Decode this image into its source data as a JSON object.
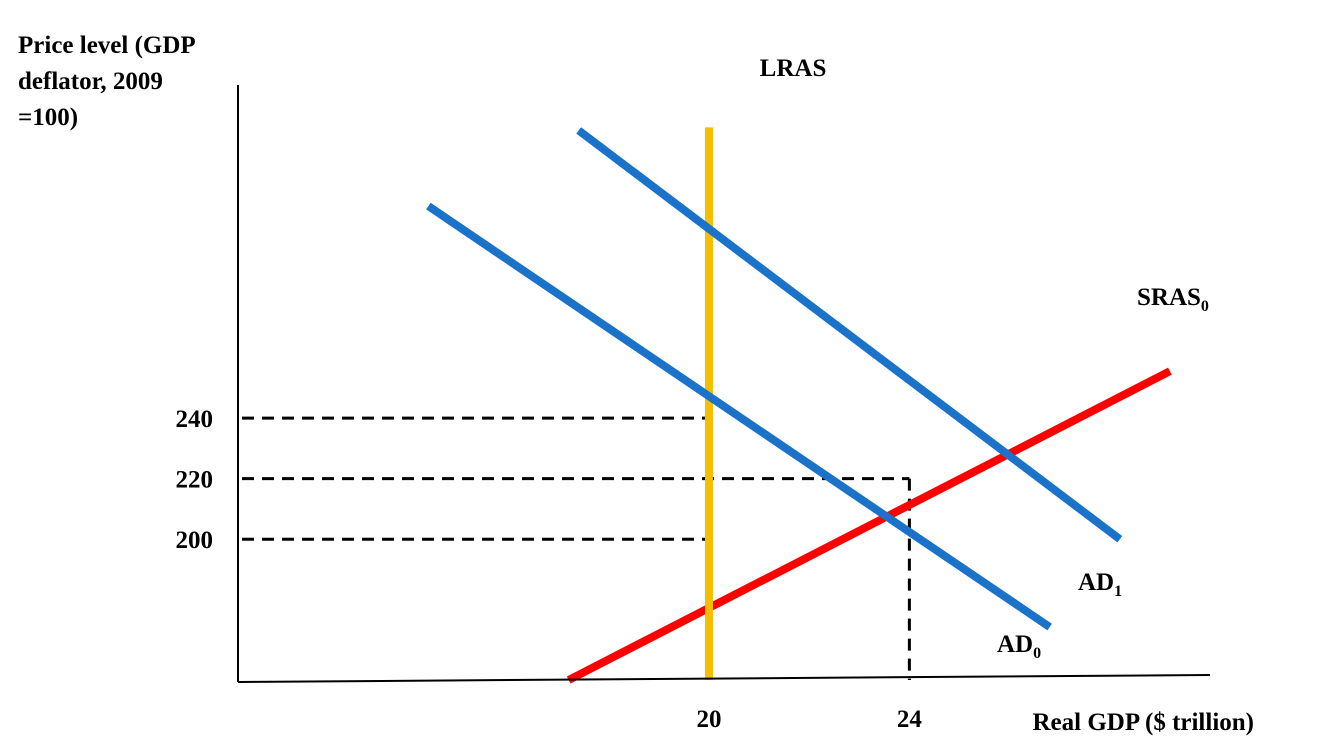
{
  "chart_data": {
    "type": "line",
    "ylabel": "Price level (GDP deflator, 2009 =100)",
    "xlabel": "Real GDP ($ trillion)",
    "xlim": [
      10.6,
      30.0
    ],
    "ylim": [
      153.5,
      350.0
    ],
    "yticks": [
      "240",
      "220",
      "200"
    ],
    "xticks": [
      "20",
      "24"
    ],
    "series": [
      {
        "name": "LRAS",
        "color": "#F5BE00",
        "points": [
          [
            20.0,
            153.5
          ],
          [
            20.0,
            336.0
          ]
        ]
      },
      {
        "name": "SRAS",
        "sub": "0",
        "color": "#FF0000",
        "points": [
          [
            17.2,
            153.5
          ],
          [
            29.2,
            255.5
          ]
        ]
      },
      {
        "name": "AD",
        "sub": "0",
        "color": "#1A73C8",
        "points": [
          [
            14.4,
            310.0
          ],
          [
            26.8,
            171.0
          ]
        ]
      },
      {
        "name": "AD",
        "sub": "1",
        "color": "#1A73C8",
        "points": [
          [
            17.4,
            335.0
          ],
          [
            28.2,
            200.0
          ]
        ]
      }
    ],
    "reference_lines": [
      {
        "type": "h",
        "y": 240,
        "x_to": 20
      },
      {
        "type": "h",
        "y": 220,
        "x_to": 24
      },
      {
        "type": "h",
        "y": 200,
        "x_to": 20
      },
      {
        "type": "v",
        "x": 24,
        "y_to": 220
      }
    ],
    "grid": false,
    "legend": "none"
  }
}
